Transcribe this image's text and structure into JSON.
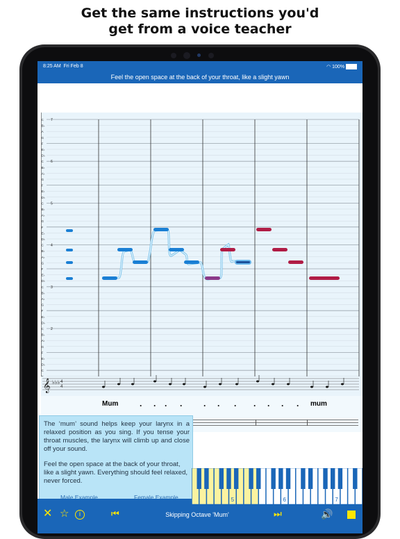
{
  "headline": [
    "Get the same instructions you'd",
    "get from a voice teacher"
  ],
  "status": {
    "time": "8:25 AM",
    "date": "Fri Feb 8",
    "battery": "100%"
  },
  "instruction": "Feel the open space at the back of your throat, like a slight yawn",
  "note_labels": [
    "C",
    "B♭",
    "A",
    "G",
    "F",
    "E♭",
    "D♭",
    "C",
    "B♭",
    "A♭",
    "G",
    "F",
    "E♭",
    "D♭",
    "C",
    "B♭",
    "A♭",
    "G",
    "F",
    "E♭",
    "D♭",
    "C",
    "B♭",
    "A♭",
    "G",
    "F",
    "E♭",
    "D♭",
    "C",
    "B♭",
    "A♭",
    "G",
    "F",
    "E♭",
    "D♭",
    "C",
    "B♭",
    "A♭",
    "G",
    "F",
    "E♭",
    "D♭",
    "C",
    "B♭"
  ],
  "octave_numbers": [
    "7",
    "6",
    "5",
    "4",
    "3",
    "2"
  ],
  "lyrics": {
    "start": "Mum",
    "end": "mum",
    "dots": [
      ".",
      ".",
      ".",
      ".",
      ".",
      ".",
      ".",
      ".",
      ".",
      ".",
      "."
    ]
  },
  "tip": {
    "paragraphs": [
      "The ‘mum’ sound helps keep your larynx in a relaxed position as you sing. If you tense your throat muscles, the larynx will climb up and close off your sound.",
      "Feel the open space at the back of your throat, like a slight yawn. Everything should feel relaxed, never forced."
    ],
    "male_link": "Male Example",
    "female_link": "Female Example"
  },
  "keyboard": {
    "octave_labels": [
      "5",
      "6",
      "7"
    ]
  },
  "bottom_bar": {
    "title": "Skipping Octave 'Mum'",
    "icons": [
      "close-icon",
      "star-icon",
      "info-icon",
      "skip-back-icon",
      "skip-forward-icon",
      "volume-icon",
      "stop-icon"
    ]
  },
  "colors": {
    "bar_blue": "#1a66b8",
    "note_blue": "#1a7fd4",
    "note_red": "#b01c45",
    "accent_yellow": "#ffe600"
  }
}
